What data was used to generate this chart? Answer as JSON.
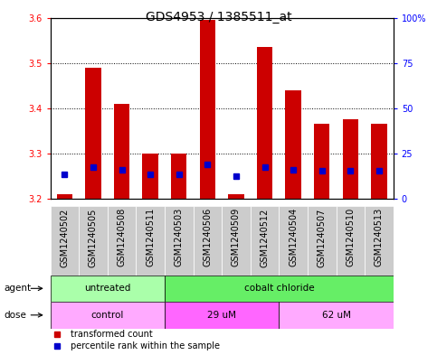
{
  "title": "GDS4953 / 1385511_at",
  "samples": [
    "GSM1240502",
    "GSM1240505",
    "GSM1240508",
    "GSM1240511",
    "GSM1240503",
    "GSM1240506",
    "GSM1240509",
    "GSM1240512",
    "GSM1240504",
    "GSM1240507",
    "GSM1240510",
    "GSM1240513"
  ],
  "transformed_counts": [
    3.21,
    3.49,
    3.41,
    3.3,
    3.3,
    3.595,
    3.21,
    3.535,
    3.44,
    3.365,
    3.375,
    3.365
  ],
  "percentile_rank_values": [
    3.255,
    3.27,
    3.265,
    3.255,
    3.255,
    3.275,
    3.25,
    3.27,
    3.265,
    3.262,
    3.262,
    3.262
  ],
  "ymin": 3.2,
  "ymax": 3.6,
  "yticks": [
    3.2,
    3.3,
    3.4,
    3.5,
    3.6
  ],
  "right_ytick_labels": [
    "0",
    "25",
    "50",
    "75",
    "100%"
  ],
  "right_ytick_positions": [
    3.2,
    3.3,
    3.4,
    3.5,
    3.6
  ],
  "bar_color": "#cc0000",
  "blue_color": "#0000cc",
  "bar_bottom": 3.2,
  "agent_groups": [
    {
      "label": "untreated",
      "start": 0,
      "end": 4,
      "color": "#aaffaa"
    },
    {
      "label": "cobalt chloride",
      "start": 4,
      "end": 12,
      "color": "#66ee66"
    }
  ],
  "dose_groups": [
    {
      "label": "control",
      "start": 0,
      "end": 4,
      "color": "#ffaaff"
    },
    {
      "label": "29 uM",
      "start": 4,
      "end": 8,
      "color": "#ff66ff"
    },
    {
      "label": "62 uM",
      "start": 8,
      "end": 12,
      "color": "#ffaaff"
    }
  ],
  "agent_label": "agent",
  "dose_label": "dose",
  "legend_red_label": "transformed count",
  "legend_blue_label": "percentile rank within the sample",
  "bar_width": 0.55,
  "blue_marker_size": 4,
  "title_fontsize": 10,
  "tick_fontsize": 7,
  "label_fontsize": 7.5,
  "legend_fontsize": 7,
  "tick_bg_color": "#cccccc",
  "tick_bg_edge_color": "#ffffff"
}
